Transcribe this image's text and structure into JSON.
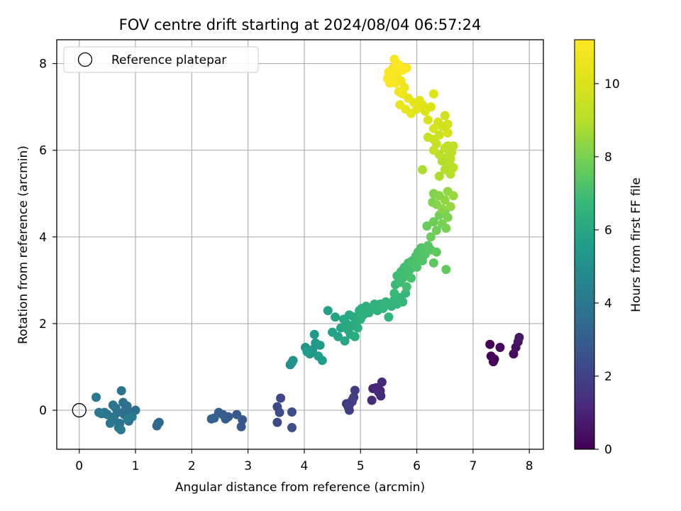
{
  "chart_data": {
    "type": "scatter",
    "title": "FOV centre drift starting at 2024/08/04 06:57:24",
    "xlabel": "Angular distance from reference (arcmin)",
    "ylabel": "Rotation from reference (arcmin)",
    "xlim": [
      -0.4,
      8.25
    ],
    "ylim": [
      -0.9,
      8.55
    ],
    "x_ticks": [
      0,
      1,
      2,
      3,
      4,
      5,
      6,
      7,
      8
    ],
    "y_ticks": [
      0,
      2,
      4,
      6,
      8
    ],
    "grid": true,
    "legend": {
      "position": "top-left",
      "entries": [
        "Reference platepar"
      ]
    },
    "reference_point": {
      "x": 0,
      "y": 0,
      "name": "Reference platepar",
      "marker": "open-circle"
    },
    "colorbar": {
      "label": "Hours from first FF file",
      "range": [
        0,
        11.2
      ],
      "ticks": [
        0,
        2,
        4,
        6,
        8,
        10
      ],
      "colormap": "viridis"
    },
    "series": [
      {
        "color_by": "hours",
        "points": [
          [
            7.3,
            1.52,
            0.0
          ],
          [
            7.32,
            1.25,
            0.05
          ],
          [
            7.38,
            1.18,
            0.1
          ],
          [
            7.36,
            1.12,
            0.15
          ],
          [
            7.48,
            1.45,
            0.2
          ],
          [
            7.72,
            1.3,
            0.3
          ],
          [
            7.76,
            1.45,
            0.4
          ],
          [
            7.8,
            1.58,
            0.5
          ],
          [
            7.82,
            1.68,
            0.6
          ],
          [
            5.22,
            0.5,
            1.0
          ],
          [
            5.28,
            0.52,
            1.05
          ],
          [
            5.35,
            0.45,
            1.1
          ],
          [
            5.38,
            0.65,
            1.15
          ],
          [
            5.32,
            0.42,
            1.2
          ],
          [
            5.2,
            0.23,
            1.25
          ],
          [
            5.36,
            0.33,
            1.3
          ],
          [
            4.75,
            0.15,
            1.55
          ],
          [
            4.8,
            0.12,
            1.6
          ],
          [
            4.85,
            0.2,
            1.65
          ],
          [
            4.88,
            0.3,
            1.7
          ],
          [
            4.9,
            0.46,
            1.75
          ],
          [
            4.82,
            0.18,
            1.8
          ],
          [
            4.78,
            0.08,
            1.85
          ],
          [
            4.8,
            0.0,
            1.9
          ],
          [
            4.86,
            0.25,
            1.95
          ],
          [
            3.58,
            0.28,
            2.2
          ],
          [
            3.52,
            0.08,
            2.25
          ],
          [
            3.56,
            -0.05,
            2.3
          ],
          [
            3.52,
            -0.28,
            2.35
          ],
          [
            3.78,
            -0.04,
            2.4
          ],
          [
            3.78,
            -0.4,
            2.45
          ],
          [
            2.9,
            -0.22,
            2.7
          ],
          [
            2.88,
            -0.38,
            2.75
          ],
          [
            2.8,
            -0.1,
            2.8
          ],
          [
            2.65,
            -0.15,
            2.85
          ],
          [
            2.6,
            -0.2,
            2.9
          ],
          [
            2.55,
            -0.1,
            2.95
          ],
          [
            2.48,
            -0.05,
            3.0
          ],
          [
            2.4,
            -0.18,
            3.05
          ],
          [
            2.35,
            -0.2,
            3.1
          ],
          [
            1.4,
            -0.3,
            3.4
          ],
          [
            1.42,
            -0.28,
            3.42
          ],
          [
            1.38,
            -0.36,
            3.45
          ],
          [
            1.0,
            0.0,
            3.6
          ],
          [
            0.92,
            -0.05,
            3.62
          ],
          [
            0.88,
            -0.25,
            3.65
          ],
          [
            0.85,
            0.1,
            3.68
          ],
          [
            0.82,
            0.02,
            3.7
          ],
          [
            0.8,
            -0.1,
            3.72
          ],
          [
            0.78,
            0.18,
            3.75
          ],
          [
            0.75,
            0.45,
            3.78
          ],
          [
            0.72,
            -0.3,
            3.8
          ],
          [
            0.7,
            -0.4,
            3.82
          ],
          [
            0.68,
            -0.05,
            3.85
          ],
          [
            0.65,
            0.05,
            3.88
          ],
          [
            0.62,
            -0.15,
            3.9
          ],
          [
            0.6,
            0.12,
            3.92
          ],
          [
            0.58,
            -0.25,
            3.95
          ],
          [
            0.55,
            -0.3,
            3.98
          ],
          [
            0.5,
            -0.1,
            4.0
          ],
          [
            0.45,
            -0.05,
            4.02
          ],
          [
            0.4,
            -0.08,
            4.05
          ],
          [
            0.35,
            -0.05,
            4.08
          ],
          [
            0.3,
            0.3,
            4.1
          ],
          [
            0.74,
            -0.45,
            4.12
          ],
          [
            0.86,
            -0.2,
            4.15
          ],
          [
            0.94,
            -0.15,
            4.18
          ],
          [
            3.75,
            1.05,
            5.0
          ],
          [
            3.78,
            1.1,
            5.05
          ],
          [
            3.8,
            1.15,
            5.1
          ],
          [
            4.02,
            1.45,
            5.25
          ],
          [
            4.1,
            1.3,
            5.3
          ],
          [
            4.15,
            1.4,
            5.35
          ],
          [
            4.2,
            1.55,
            5.4
          ],
          [
            4.18,
            1.75,
            5.45
          ],
          [
            4.28,
            1.5,
            5.5
          ],
          [
            4.32,
            1.15,
            5.55
          ],
          [
            4.05,
            1.35,
            5.6
          ],
          [
            4.25,
            1.25,
            5.65
          ],
          [
            4.42,
            2.3,
            5.75
          ],
          [
            4.5,
            1.8,
            5.8
          ],
          [
            4.55,
            2.15,
            5.85
          ],
          [
            4.6,
            1.7,
            5.9
          ],
          [
            4.65,
            1.9,
            5.95
          ],
          [
            4.7,
            2.1,
            6.0
          ],
          [
            4.72,
            1.6,
            6.02
          ],
          [
            4.75,
            2.0,
            6.05
          ],
          [
            4.78,
            1.85,
            6.08
          ],
          [
            4.8,
            2.2,
            6.1
          ],
          [
            4.82,
            1.75,
            6.12
          ],
          [
            4.85,
            1.95,
            6.15
          ],
          [
            4.88,
            2.15,
            6.18
          ],
          [
            4.9,
            1.7,
            6.2
          ],
          [
            4.92,
            2.05,
            6.22
          ],
          [
            4.95,
            1.9,
            6.25
          ],
          [
            4.98,
            2.3,
            6.28
          ],
          [
            5.0,
            2.1,
            6.3
          ],
          [
            5.02,
            2.35,
            6.32
          ],
          [
            5.05,
            2.2,
            6.35
          ],
          [
            5.1,
            2.4,
            6.38
          ],
          [
            5.15,
            2.25,
            6.4
          ],
          [
            5.2,
            2.35,
            6.42
          ],
          [
            5.25,
            2.45,
            6.45
          ],
          [
            5.3,
            2.3,
            6.48
          ],
          [
            5.35,
            2.45,
            6.5
          ],
          [
            5.4,
            2.35,
            6.52
          ],
          [
            5.45,
            2.5,
            6.55
          ],
          [
            5.5,
            2.15,
            6.58
          ],
          [
            5.55,
            2.4,
            6.6
          ],
          [
            5.6,
            2.55,
            6.62
          ],
          [
            5.65,
            2.45,
            6.65
          ],
          [
            5.7,
            2.6,
            6.68
          ],
          [
            5.75,
            2.5,
            6.7
          ],
          [
            5.8,
            2.7,
            6.72
          ],
          [
            5.6,
            2.7,
            6.8
          ],
          [
            5.62,
            2.9,
            6.85
          ],
          [
            5.65,
            3.1,
            6.88
          ],
          [
            5.7,
            2.95,
            6.9
          ],
          [
            5.72,
            3.2,
            6.92
          ],
          [
            5.75,
            3.05,
            6.95
          ],
          [
            5.78,
            3.3,
            6.98
          ],
          [
            5.8,
            3.15,
            7.0
          ],
          [
            5.82,
            2.85,
            7.02
          ],
          [
            5.85,
            3.4,
            7.05
          ],
          [
            5.88,
            3.25,
            7.08
          ],
          [
            5.9,
            3.05,
            7.1
          ],
          [
            5.92,
            3.45,
            7.12
          ],
          [
            5.95,
            3.35,
            7.15
          ],
          [
            5.98,
            3.55,
            7.18
          ],
          [
            6.0,
            3.3,
            7.2
          ],
          [
            6.02,
            3.65,
            7.22
          ],
          [
            6.05,
            3.5,
            7.25
          ],
          [
            6.08,
            3.75,
            7.28
          ],
          [
            6.1,
            3.45,
            7.3
          ],
          [
            6.15,
            3.6,
            7.35
          ],
          [
            6.2,
            3.8,
            7.4
          ],
          [
            6.25,
            3.7,
            7.45
          ],
          [
            6.3,
            3.4,
            7.5
          ],
          [
            6.35,
            3.65,
            7.55
          ],
          [
            6.52,
            3.25,
            7.6
          ],
          [
            6.18,
            4.25,
            7.7
          ],
          [
            6.25,
            4.0,
            7.75
          ],
          [
            6.3,
            4.35,
            7.8
          ],
          [
            6.35,
            4.15,
            7.85
          ],
          [
            6.4,
            4.5,
            7.9
          ],
          [
            6.45,
            4.3,
            7.95
          ],
          [
            6.5,
            4.6,
            8.0
          ],
          [
            6.52,
            4.2,
            8.02
          ],
          [
            6.55,
            4.45,
            8.05
          ],
          [
            6.28,
            4.8,
            8.1
          ],
          [
            6.3,
            5.0,
            8.15
          ],
          [
            6.35,
            4.75,
            8.2
          ],
          [
            6.4,
            4.95,
            8.25
          ],
          [
            6.45,
            4.65,
            8.3
          ],
          [
            6.5,
            4.85,
            8.35
          ],
          [
            6.55,
            5.05,
            8.4
          ],
          [
            6.6,
            4.7,
            8.45
          ],
          [
            6.65,
            4.95,
            8.5
          ],
          [
            6.1,
            5.55,
            8.8
          ],
          [
            6.4,
            5.4,
            8.85
          ],
          [
            6.45,
            5.75,
            8.9
          ],
          [
            6.5,
            5.55,
            8.95
          ],
          [
            6.55,
            5.85,
            9.0
          ],
          [
            6.58,
            5.7,
            9.02
          ],
          [
            6.6,
            5.45,
            9.05
          ],
          [
            6.62,
            5.95,
            9.08
          ],
          [
            6.65,
            5.6,
            9.1
          ],
          [
            6.4,
            5.9,
            9.12
          ],
          [
            6.5,
            6.05,
            9.15
          ],
          [
            6.55,
            6.1,
            9.18
          ],
          [
            6.6,
            5.8,
            9.2
          ],
          [
            6.65,
            6.1,
            9.22
          ],
          [
            6.3,
            6.0,
            9.4
          ],
          [
            6.3,
            6.25,
            9.45
          ],
          [
            6.35,
            6.15,
            9.5
          ],
          [
            6.2,
            6.3,
            9.55
          ],
          [
            6.4,
            6.35,
            9.6
          ],
          [
            6.45,
            6.55,
            9.65
          ],
          [
            6.5,
            6.8,
            9.7
          ],
          [
            6.55,
            6.6,
            9.75
          ],
          [
            6.38,
            6.65,
            9.8
          ],
          [
            6.3,
            6.5,
            9.85
          ],
          [
            6.55,
            6.4,
            9.9
          ],
          [
            6.2,
            6.7,
            10.0
          ],
          [
            6.15,
            6.9,
            10.05
          ],
          [
            6.25,
            7.0,
            10.1
          ],
          [
            6.3,
            7.3,
            10.15
          ],
          [
            6.1,
            7.05,
            10.2
          ],
          [
            6.05,
            7.15,
            10.25
          ],
          [
            6.0,
            6.95,
            10.3
          ],
          [
            5.95,
            7.1,
            10.35
          ],
          [
            5.9,
            6.85,
            10.4
          ],
          [
            5.85,
            7.2,
            10.45
          ],
          [
            5.8,
            6.95,
            10.5
          ],
          [
            5.75,
            7.3,
            10.55
          ],
          [
            5.7,
            7.05,
            10.6
          ],
          [
            5.78,
            7.45,
            10.7
          ],
          [
            5.72,
            7.6,
            10.75
          ],
          [
            5.68,
            7.35,
            10.8
          ],
          [
            5.65,
            7.75,
            10.85
          ],
          [
            5.62,
            7.55,
            10.9
          ],
          [
            5.58,
            7.9,
            10.95
          ],
          [
            5.55,
            7.7,
            11.0
          ],
          [
            5.52,
            7.55,
            11.02
          ],
          [
            5.5,
            7.8,
            11.05
          ],
          [
            5.48,
            7.65,
            11.08
          ],
          [
            5.6,
            8.1,
            11.1
          ],
          [
            5.65,
            8.0,
            11.12
          ],
          [
            5.7,
            7.95,
            11.15
          ],
          [
            5.75,
            7.85,
            11.18
          ],
          [
            5.82,
            7.9,
            11.2
          ]
        ]
      }
    ]
  }
}
